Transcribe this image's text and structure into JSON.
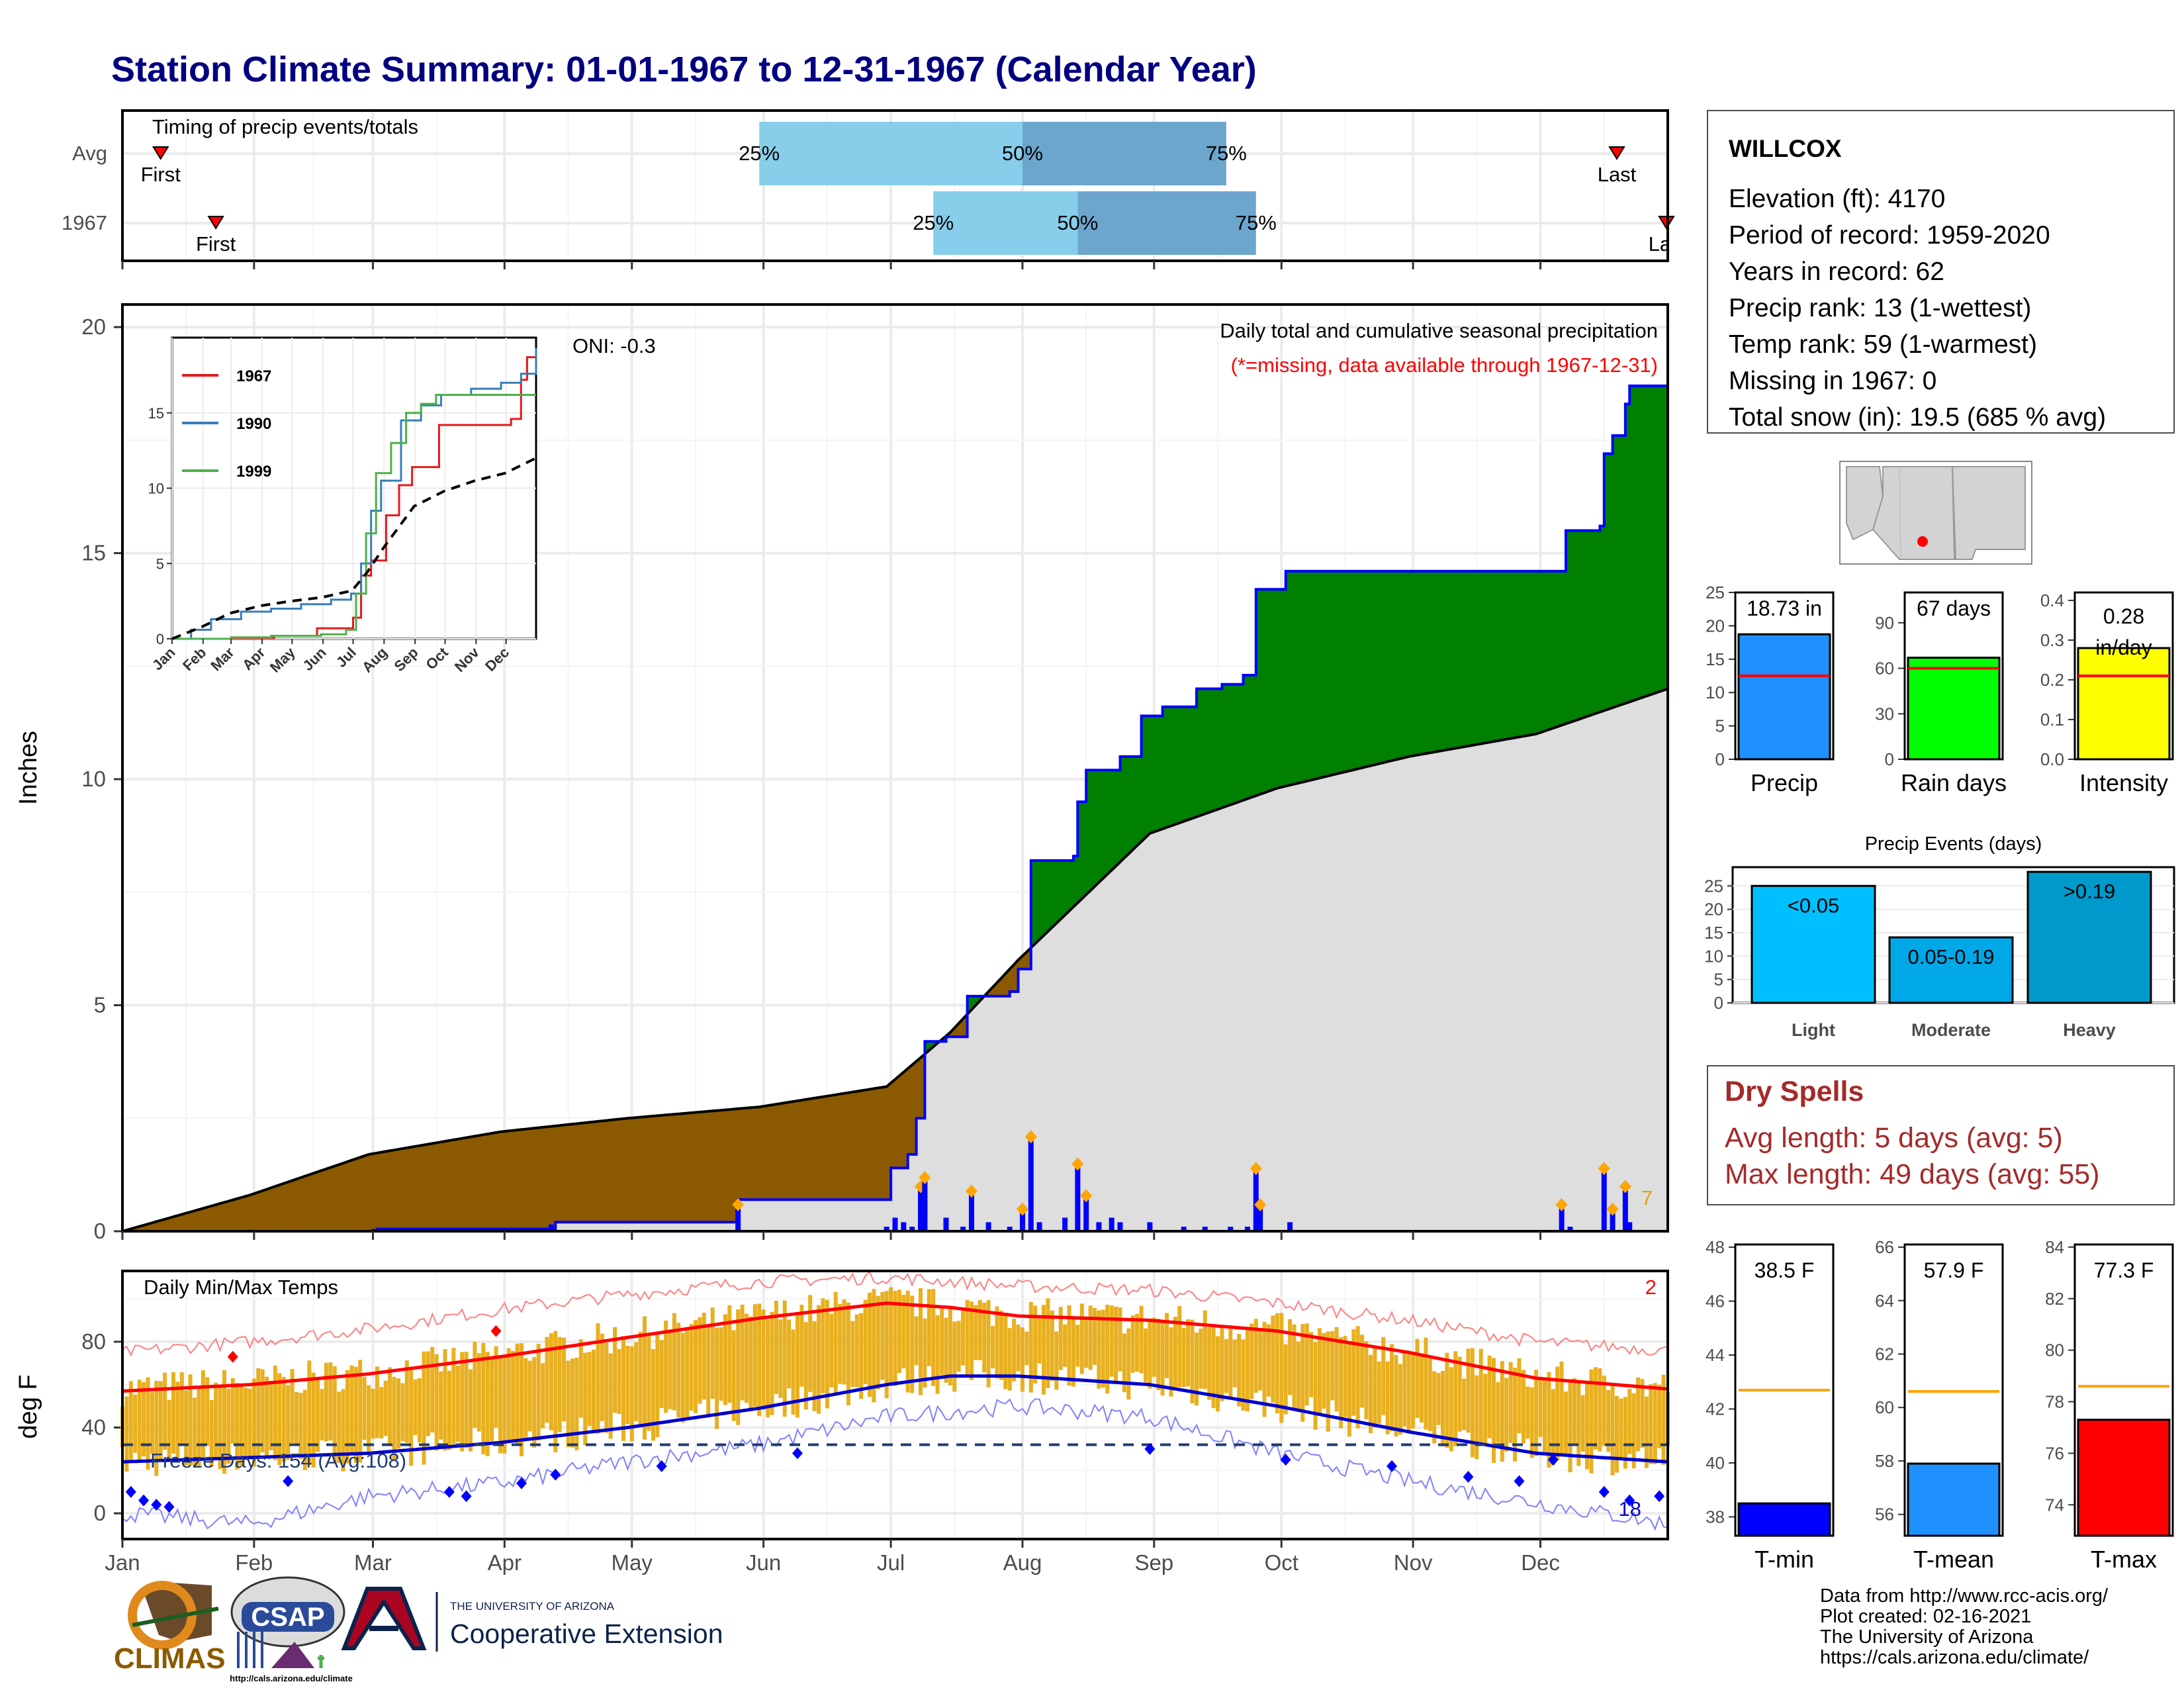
{
  "title": "Station Climate Summary: 01-01-1967 to 12-31-1967 (Calendar Year)",
  "station": {
    "name": "WILLCOX",
    "lines": [
      "Elevation (ft): 4170",
      "Period of record: 1959-2020",
      "Years in record: 62",
      "Precip rank: 13 (1-wettest)",
      "Temp rank: 59 (1-warmest)",
      "Missing in 1967: 0",
      "Total snow (in): 19.5 (685 % avg)"
    ]
  },
  "months": [
    "Jan",
    "Feb",
    "Mar",
    "Apr",
    "May",
    "Jun",
    "Jul",
    "Aug",
    "Sep",
    "Oct",
    "Nov",
    "Dec"
  ],
  "timing": {
    "title": "Timing of precip events/totals",
    "rows": [
      {
        "label": "Avg",
        "first_doy": 10,
        "last_doy": 353,
        "q25_doy": 151,
        "q50_doy": 213,
        "q75_doy": 261,
        "first_label": "First",
        "last_label": "Last"
      },
      {
        "label": "1967",
        "first_doy": 23,
        "last_doy": 365,
        "q25_doy": 192,
        "q50_doy": 226,
        "q75_doy": 268,
        "first_label": "First",
        "last_label": "Last"
      }
    ],
    "q_labels": [
      "25%",
      "50%",
      "75%"
    ]
  },
  "chart_data": [
    {
      "type": "area",
      "name": "precip-main",
      "title": "Daily total and cumulative seasonal precipitation",
      "subtitle": "(*=missing, data available through 1967-12-31)",
      "ylabel": "Inches",
      "ylim": [
        0,
        20.5
      ],
      "yticks": [
        0,
        5,
        10,
        15,
        20
      ],
      "oni": "ONI: -0.3",
      "snow_days_label": "7",
      "cumulative_1967": [
        [
          1,
          0
        ],
        [
          60,
          0.02
        ],
        [
          61,
          0.05
        ],
        [
          102,
          0.05
        ],
        [
          103,
          0.2
        ],
        [
          145,
          0.2
        ],
        [
          146,
          0.7
        ],
        [
          180,
          0.7
        ],
        [
          182,
          1.4
        ],
        [
          186,
          1.7
        ],
        [
          188,
          2.5
        ],
        [
          190,
          4.2
        ],
        [
          195,
          4.3
        ],
        [
          199,
          4.3
        ],
        [
          200,
          5.2
        ],
        [
          210,
          5.3
        ],
        [
          212,
          5.8
        ],
        [
          215,
          8.2
        ],
        [
          225,
          8.3
        ],
        [
          226,
          9.5
        ],
        [
          228,
          10.2
        ],
        [
          236,
          10.5
        ],
        [
          241,
          11.4
        ],
        [
          246,
          11.6
        ],
        [
          254,
          12.0
        ],
        [
          260,
          12.1
        ],
        [
          265,
          12.3
        ],
        [
          268,
          14.2
        ],
        [
          275,
          14.6
        ],
        [
          300,
          14.6
        ],
        [
          340,
          14.6
        ],
        [
          341,
          15.5
        ],
        [
          349,
          15.6
        ],
        [
          350,
          17.2
        ],
        [
          352,
          17.6
        ],
        [
          355,
          18.3
        ],
        [
          356,
          18.7
        ],
        [
          365,
          18.73
        ]
      ],
      "average_cumulative": [
        [
          1,
          0
        ],
        [
          31,
          0.8
        ],
        [
          59,
          1.7
        ],
        [
          90,
          2.2
        ],
        [
          120,
          2.5
        ],
        [
          151,
          2.75
        ],
        [
          181,
          3.2
        ],
        [
          196,
          4.4
        ],
        [
          212,
          6.0
        ],
        [
          243,
          8.8
        ],
        [
          273,
          9.8
        ],
        [
          304,
          10.5
        ],
        [
          334,
          11.0
        ],
        [
          365,
          12.0
        ]
      ],
      "daily_precip_1967": [
        [
          60,
          0.03
        ],
        [
          102,
          0.15
        ],
        [
          146,
          0.5
        ],
        [
          181,
          0.1
        ],
        [
          183,
          0.3
        ],
        [
          185,
          0.2
        ],
        [
          187,
          0.1
        ],
        [
          189,
          0.9
        ],
        [
          190,
          1.1
        ],
        [
          195,
          0.3
        ],
        [
          199,
          0.1
        ],
        [
          201,
          0.8
        ],
        [
          205,
          0.2
        ],
        [
          210,
          0.1
        ],
        [
          213,
          0.4
        ],
        [
          215,
          2.0
        ],
        [
          217,
          0.2
        ],
        [
          223,
          0.3
        ],
        [
          226,
          1.4
        ],
        [
          228,
          0.7
        ],
        [
          231,
          0.2
        ],
        [
          234,
          0.3
        ],
        [
          236,
          0.2
        ],
        [
          243,
          0.2
        ],
        [
          251,
          0.1
        ],
        [
          256,
          0.1
        ],
        [
          262,
          0.1
        ],
        [
          266,
          0.1
        ],
        [
          268,
          1.3
        ],
        [
          269,
          0.5
        ],
        [
          276,
          0.2
        ],
        [
          340,
          0.5
        ],
        [
          342,
          0.1
        ],
        [
          350,
          1.3
        ],
        [
          352,
          0.4
        ],
        [
          355,
          0.9
        ],
        [
          356,
          0.2
        ]
      ],
      "daily_colors": {
        "rain": "#0000ff",
        "max_marker": "#ffa500",
        "above_avg_fill": "#008000",
        "below_avg_fill": "#8b5a00",
        "avg_fill": "#dedede"
      }
    },
    {
      "type": "line",
      "name": "inset-cumulative",
      "x": "months",
      "ylim": [
        0,
        20
      ],
      "yticks": [
        0,
        5,
        10,
        15
      ],
      "series": [
        {
          "name": "1967",
          "color": "#e41a1c",
          "points": [
            [
              1,
              0
            ],
            [
              60,
              0.05
            ],
            [
              103,
              0.2
            ],
            [
              146,
              0.7
            ],
            [
              182,
              1.4
            ],
            [
              190,
              4.2
            ],
            [
              200,
              5.2
            ],
            [
              215,
              8.2
            ],
            [
              228,
              10.2
            ],
            [
              241,
              11.4
            ],
            [
              268,
              14.2
            ],
            [
              340,
              14.6
            ],
            [
              350,
              17.2
            ],
            [
              356,
              18.7
            ],
            [
              365,
              18.73
            ]
          ]
        },
        {
          "name": "1990",
          "color": "#377eb8",
          "points": [
            [
              1,
              0
            ],
            [
              20,
              0.6
            ],
            [
              40,
              1.3
            ],
            [
              70,
              1.8
            ],
            [
              100,
              2.0
            ],
            [
              130,
              2.3
            ],
            [
              160,
              2.6
            ],
            [
              180,
              3.0
            ],
            [
              190,
              5.0
            ],
            [
              200,
              8.5
            ],
            [
              210,
              10.5
            ],
            [
              230,
              14.5
            ],
            [
              250,
              15.5
            ],
            [
              270,
              16.2
            ],
            [
              300,
              16.6
            ],
            [
              330,
              17.0
            ],
            [
              350,
              17.6
            ],
            [
              365,
              19.3
            ]
          ]
        },
        {
          "name": "1999",
          "color": "#4daf4a",
          "points": [
            [
              1,
              0
            ],
            [
              60,
              0.1
            ],
            [
              100,
              0.2
            ],
            [
              150,
              0.3
            ],
            [
              175,
              0.6
            ],
            [
              185,
              3.0
            ],
            [
              195,
              7.0
            ],
            [
              205,
              11.0
            ],
            [
              220,
              13.0
            ],
            [
              235,
              15.0
            ],
            [
              250,
              15.6
            ],
            [
              265,
              16.2
            ],
            [
              365,
              16.2
            ]
          ]
        },
        {
          "name": "avg",
          "color": "#000000",
          "dashed": true,
          "points": [
            [
              1,
              0
            ],
            [
              31,
              0.8
            ],
            [
              59,
              1.7
            ],
            [
              90,
              2.2
            ],
            [
              120,
              2.5
            ],
            [
              151,
              2.75
            ],
            [
              181,
              3.2
            ],
            [
              196,
              4.4
            ],
            [
              212,
              6.0
            ],
            [
              243,
              8.8
            ],
            [
              273,
              9.8
            ],
            [
              304,
              10.5
            ],
            [
              334,
              11.0
            ],
            [
              365,
              12.0
            ]
          ]
        }
      ]
    },
    {
      "type": "bar",
      "name": "precip-total",
      "categories": [
        "Precip"
      ],
      "values": [
        18.73
      ],
      "avg": 12.5,
      "label": "18.73 in",
      "ylim": [
        0,
        25
      ],
      "yticks": [
        0,
        5,
        10,
        15,
        20,
        25
      ],
      "color": "#1e90ff"
    },
    {
      "type": "bar",
      "name": "rain-days",
      "categories": [
        "Rain days"
      ],
      "values": [
        67
      ],
      "avg": 60,
      "label": "67 days",
      "ylim": [
        0,
        110
      ],
      "yticks": [
        0,
        30,
        60,
        90
      ],
      "color": "#00ff00"
    },
    {
      "type": "bar",
      "name": "intensity",
      "categories": [
        "Intensity"
      ],
      "values": [
        0.28
      ],
      "avg": 0.21,
      "label": "0.28",
      "label2": "in/day",
      "ylim": [
        0,
        0.42
      ],
      "yticks": [
        0.0,
        0.1,
        0.2,
        0.3,
        0.4
      ],
      "color": "#ffff00"
    },
    {
      "type": "bar",
      "name": "precip-events",
      "title": "Precip Events (days)",
      "categories": [
        "Light",
        "Moderate",
        "Heavy"
      ],
      "values": [
        25,
        14,
        28
      ],
      "bar_labels": [
        "<0.05",
        "0.05-0.19",
        ">0.19"
      ],
      "ylim": [
        0,
        29
      ],
      "yticks": [
        0,
        5,
        10,
        15,
        20,
        25
      ],
      "colors": [
        "#00bfff",
        "#00a8e8",
        "#0099cc"
      ]
    },
    {
      "type": "line",
      "name": "daily-temps",
      "title": "Daily Min/Max Temps",
      "ylabel": "deg F",
      "ylim": [
        -12,
        113
      ],
      "yticks": [
        0,
        40,
        80
      ],
      "freeze_label": "Freeze Days: 154 (Avg:108)",
      "freeze_line": 32,
      "record_high_count": "2",
      "record_low_count": "18",
      "avg_max": [
        [
          1,
          57
        ],
        [
          31,
          60
        ],
        [
          59,
          65
        ],
        [
          90,
          73
        ],
        [
          120,
          82
        ],
        [
          151,
          91
        ],
        [
          181,
          98
        ],
        [
          196,
          96
        ],
        [
          212,
          92
        ],
        [
          243,
          90
        ],
        [
          273,
          85
        ],
        [
          304,
          75
        ],
        [
          334,
          63
        ],
        [
          365,
          58
        ]
      ],
      "avg_min": [
        [
          1,
          24
        ],
        [
          31,
          26
        ],
        [
          59,
          28
        ],
        [
          90,
          33
        ],
        [
          120,
          40
        ],
        [
          151,
          49
        ],
        [
          181,
          60
        ],
        [
          196,
          64
        ],
        [
          212,
          64
        ],
        [
          243,
          60
        ],
        [
          273,
          50
        ],
        [
          304,
          38
        ],
        [
          334,
          28
        ],
        [
          365,
          24
        ]
      ],
      "record_max": [
        [
          1,
          75
        ],
        [
          31,
          80
        ],
        [
          59,
          86
        ],
        [
          90,
          95
        ],
        [
          120,
          102
        ],
        [
          151,
          108
        ],
        [
          181,
          110
        ],
        [
          212,
          106
        ],
        [
          243,
          104
        ],
        [
          273,
          98
        ],
        [
          304,
          90
        ],
        [
          334,
          80
        ],
        [
          365,
          76
        ]
      ],
      "record_min": [
        [
          1,
          0
        ],
        [
          31,
          -5
        ],
        [
          59,
          8
        ],
        [
          90,
          14
        ],
        [
          120,
          24
        ],
        [
          151,
          32
        ],
        [
          181,
          45
        ],
        [
          212,
          50
        ],
        [
          243,
          45
        ],
        [
          273,
          28
        ],
        [
          304,
          15
        ],
        [
          334,
          5
        ],
        [
          365,
          -5
        ]
      ],
      "freeze_markers": [
        [
          3,
          10
        ],
        [
          6,
          6
        ],
        [
          9,
          4
        ],
        [
          12,
          3
        ],
        [
          40,
          15
        ],
        [
          78,
          10
        ],
        [
          82,
          8
        ],
        [
          95,
          14
        ],
        [
          103,
          18
        ],
        [
          128,
          22
        ],
        [
          160,
          28
        ],
        [
          243,
          30
        ],
        [
          275,
          25
        ],
        [
          300,
          22
        ],
        [
          318,
          17
        ],
        [
          330,
          15
        ],
        [
          338,
          25
        ],
        [
          350,
          10
        ],
        [
          356,
          6
        ],
        [
          363,
          8
        ]
      ],
      "record_markers": [
        [
          27,
          73
        ],
        [
          89,
          85
        ]
      ],
      "colors": {
        "range": "#e8b020",
        "avg_max": "#ff0000",
        "avg_min": "#0000cd",
        "record_max": "#ff8080",
        "record_min": "#8080ff",
        "freeze": "#1f3b70"
      }
    },
    {
      "type": "bar",
      "name": "tmin",
      "categories": [
        "T-min"
      ],
      "values": [
        38.5
      ],
      "avg": 42.7,
      "label": "38.5 F",
      "ylim": [
        37.3,
        48.1
      ],
      "yticks": [
        38,
        40,
        42,
        44,
        46,
        48
      ],
      "color": "#0000ff"
    },
    {
      "type": "bar",
      "name": "tmean",
      "categories": [
        "T-mean"
      ],
      "values": [
        57.9
      ],
      "avg": 60.6,
      "label": "57.9 F",
      "ylim": [
        55.2,
        66.1
      ],
      "yticks": [
        56,
        58,
        60,
        62,
        64,
        66
      ],
      "color": "#1e90ff"
    },
    {
      "type": "bar",
      "name": "tmax",
      "categories": [
        "T-max"
      ],
      "values": [
        77.3
      ],
      "avg": 78.6,
      "label": "77.3 F",
      "ylim": [
        72.8,
        84.1
      ],
      "yticks": [
        74,
        76,
        78,
        80,
        82,
        84
      ],
      "color": "#ff0000"
    }
  ],
  "dry_spells": {
    "title": "Dry Spells",
    "avg": "Avg length: 5 days (avg: 5)",
    "max": "Max length: 49 days (avg: 55)"
  },
  "footer": [
    "Data from http://www.rcc-acis.org/",
    "Plot created: 02-16-2021",
    "The University of Arizona",
    "https://cals.arizona.edu/climate/"
  ],
  "logos": {
    "climas": "CLIMAS",
    "csap": "CSAP",
    "csap_url": "http://cals.arizona.edu/climate",
    "ua_small": "THE UNIVERSITY OF ARIZONA",
    "ua_big": "Cooperative Extension"
  }
}
